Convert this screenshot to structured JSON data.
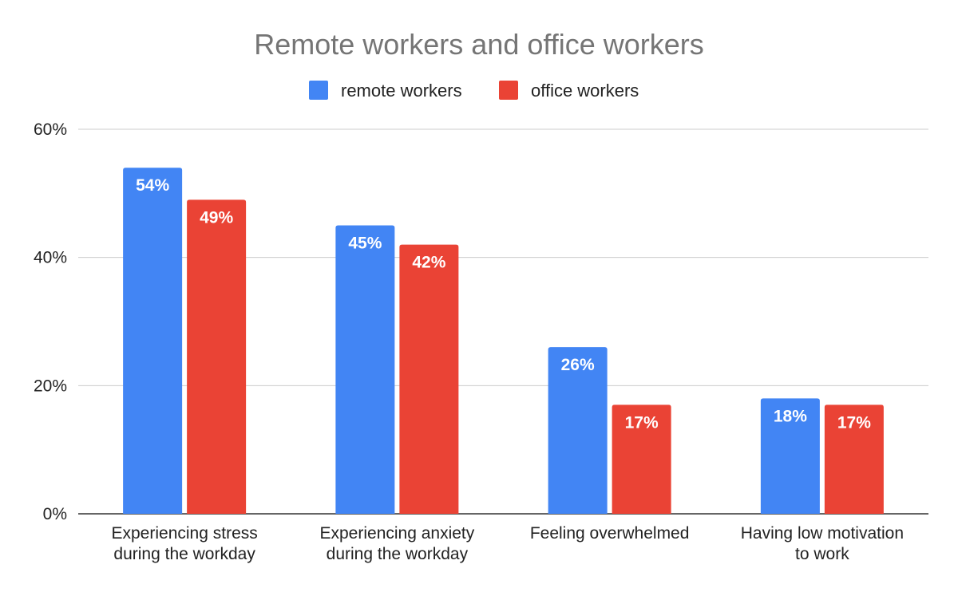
{
  "chart_data": {
    "type": "bar",
    "title": "Remote workers and office workers",
    "categories": [
      [
        "Experiencing stress",
        "during the workday"
      ],
      [
        "Experiencing anxiety",
        "during the workday"
      ],
      [
        "Feeling overwhelmed"
      ],
      [
        "Having low motivation",
        "to work"
      ]
    ],
    "series": [
      {
        "name": "remote workers",
        "values": [
          54,
          45,
          26,
          18
        ],
        "labels": [
          "54%",
          "45%",
          "26%",
          "18%"
        ],
        "color": "#4285F4"
      },
      {
        "name": "office workers",
        "values": [
          49,
          42,
          17,
          17
        ],
        "labels": [
          "49%",
          "42%",
          "17%",
          "17%"
        ],
        "color": "#EA4335"
      }
    ],
    "ylim": [
      0,
      60
    ],
    "yticks": [
      0,
      20,
      40,
      60
    ],
    "ytick_labels": [
      "0%",
      "20%",
      "40%",
      "60%"
    ],
    "grid": true,
    "legend_position": "top"
  }
}
